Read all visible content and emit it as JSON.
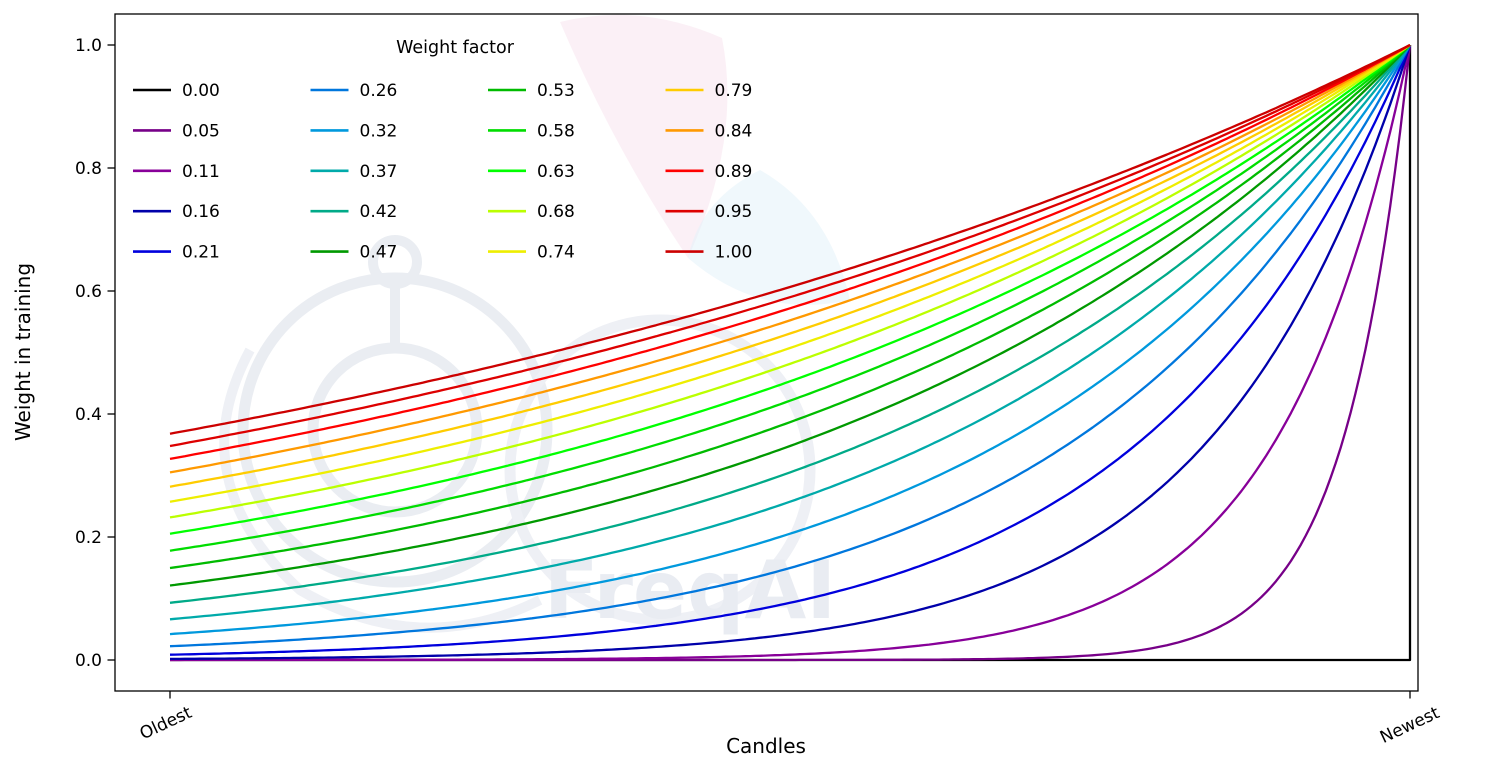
{
  "watermark": {
    "text": "FreqAI"
  },
  "chart_data": {
    "type": "line",
    "title": "",
    "xlabel": "Candles",
    "ylabel": "Weight in training",
    "legend_title": "Weight factor",
    "legend_position": "upper left",
    "legend_columns": 4,
    "grid": false,
    "x_range": [
      0,
      1
    ],
    "ylim": [
      0,
      1.0
    ],
    "yticks": [
      "0.0",
      "0.2",
      "0.4",
      "0.6",
      "0.8",
      "1.0"
    ],
    "xticklabels": [
      "Oldest",
      "Newest"
    ],
    "curve_formula": "weight(x) = exp(-(1 - x) / factor), x normalized 0 = oldest candle, 1 = newest candle",
    "sample_x": [
      0,
      0.25,
      0.5,
      0.75,
      1
    ],
    "series": [
      {
        "label": "0.00",
        "factor": 0,
        "color": "#000000",
        "values": [
          0,
          0,
          0,
          0,
          1
        ]
      },
      {
        "label": "0.05",
        "factor": 0.0526,
        "color": "#770088",
        "values": [
          0,
          0,
          0,
          0.009,
          1
        ]
      },
      {
        "label": "0.11",
        "factor": 0.1053,
        "color": "#880099",
        "values": [
          0,
          0.001,
          0.009,
          0.093,
          1
        ]
      },
      {
        "label": "0.16",
        "factor": 0.1579,
        "color": "#0000aa",
        "values": [
          0.002,
          0.009,
          0.042,
          0.205,
          1
        ]
      },
      {
        "label": "0.21",
        "factor": 0.2105,
        "color": "#0000dd",
        "values": [
          0.009,
          0.028,
          0.093,
          0.305,
          1
        ]
      },
      {
        "label": "0.26",
        "factor": 0.2632,
        "color": "#0077dd",
        "values": [
          0.022,
          0.058,
          0.15,
          0.387,
          1
        ]
      },
      {
        "label": "0.32",
        "factor": 0.3158,
        "color": "#0099dd",
        "values": [
          0.042,
          0.093,
          0.205,
          0.453,
          1
        ]
      },
      {
        "label": "0.37",
        "factor": 0.3684,
        "color": "#00aaaa",
        "values": [
          0.066,
          0.131,
          0.257,
          0.507,
          1
        ]
      },
      {
        "label": "0.42",
        "factor": 0.4211,
        "color": "#00aa88",
        "values": [
          0.093,
          0.168,
          0.305,
          0.552,
          1
        ]
      },
      {
        "label": "0.47",
        "factor": 0.4737,
        "color": "#009900",
        "values": [
          0.121,
          0.205,
          0.348,
          0.59,
          1
        ]
      },
      {
        "label": "0.53",
        "factor": 0.5263,
        "color": "#00bb00",
        "values": [
          0.15,
          0.24,
          0.387,
          0.622,
          1
        ]
      },
      {
        "label": "0.58",
        "factor": 0.5789,
        "color": "#00dd00",
        "values": [
          0.178,
          0.274,
          0.422,
          0.649,
          1
        ]
      },
      {
        "label": "0.63",
        "factor": 0.6316,
        "color": "#00ff00",
        "values": [
          0.205,
          0.305,
          0.453,
          0.673,
          1
        ]
      },
      {
        "label": "0.68",
        "factor": 0.6842,
        "color": "#bbff00",
        "values": [
          0.232,
          0.334,
          0.482,
          0.694,
          1
        ]
      },
      {
        "label": "0.74",
        "factor": 0.7368,
        "color": "#eeee00",
        "values": [
          0.257,
          0.361,
          0.507,
          0.712,
          1
        ]
      },
      {
        "label": "0.79",
        "factor": 0.7895,
        "color": "#ffcc00",
        "values": [
          0.282,
          0.387,
          0.531,
          0.728,
          1
        ]
      },
      {
        "label": "0.84",
        "factor": 0.8421,
        "color": "#ff9900",
        "values": [
          0.305,
          0.41,
          0.552,
          0.743,
          1
        ]
      },
      {
        "label": "0.89",
        "factor": 0.8947,
        "color": "#ff0000",
        "values": [
          0.327,
          0.433,
          0.572,
          0.756,
          1
        ]
      },
      {
        "label": "0.95",
        "factor": 0.9474,
        "color": "#dd0000",
        "values": [
          0.348,
          0.453,
          0.59,
          0.768,
          1
        ]
      },
      {
        "label": "1.00",
        "factor": 1.0,
        "color": "#cc0000",
        "values": [
          0.368,
          0.472,
          0.607,
          0.779,
          1
        ]
      }
    ]
  }
}
